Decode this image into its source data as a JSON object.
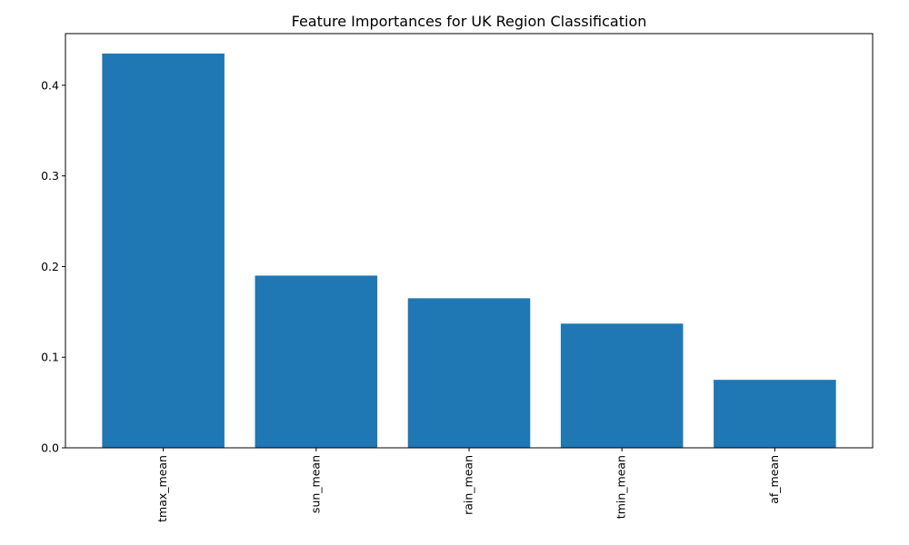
{
  "chart_data": {
    "type": "bar",
    "title": "Feature Importances for UK Region Classification",
    "xlabel": "",
    "ylabel": "",
    "categories": [
      "tmax_mean",
      "sun_mean",
      "rain_mean",
      "tmin_mean",
      "af_mean"
    ],
    "values": [
      0.435,
      0.19,
      0.165,
      0.137,
      0.075
    ],
    "ylim": [
      0,
      0.457
    ],
    "yticks": [
      0.0,
      0.1,
      0.2,
      0.3,
      0.4
    ],
    "ytick_labels": [
      "0.0",
      "0.1",
      "0.2",
      "0.3",
      "0.4"
    ],
    "xtick_rotation": "vertical",
    "grid": false,
    "legend": "none",
    "colors": {
      "bar": "#1f77b4"
    }
  }
}
